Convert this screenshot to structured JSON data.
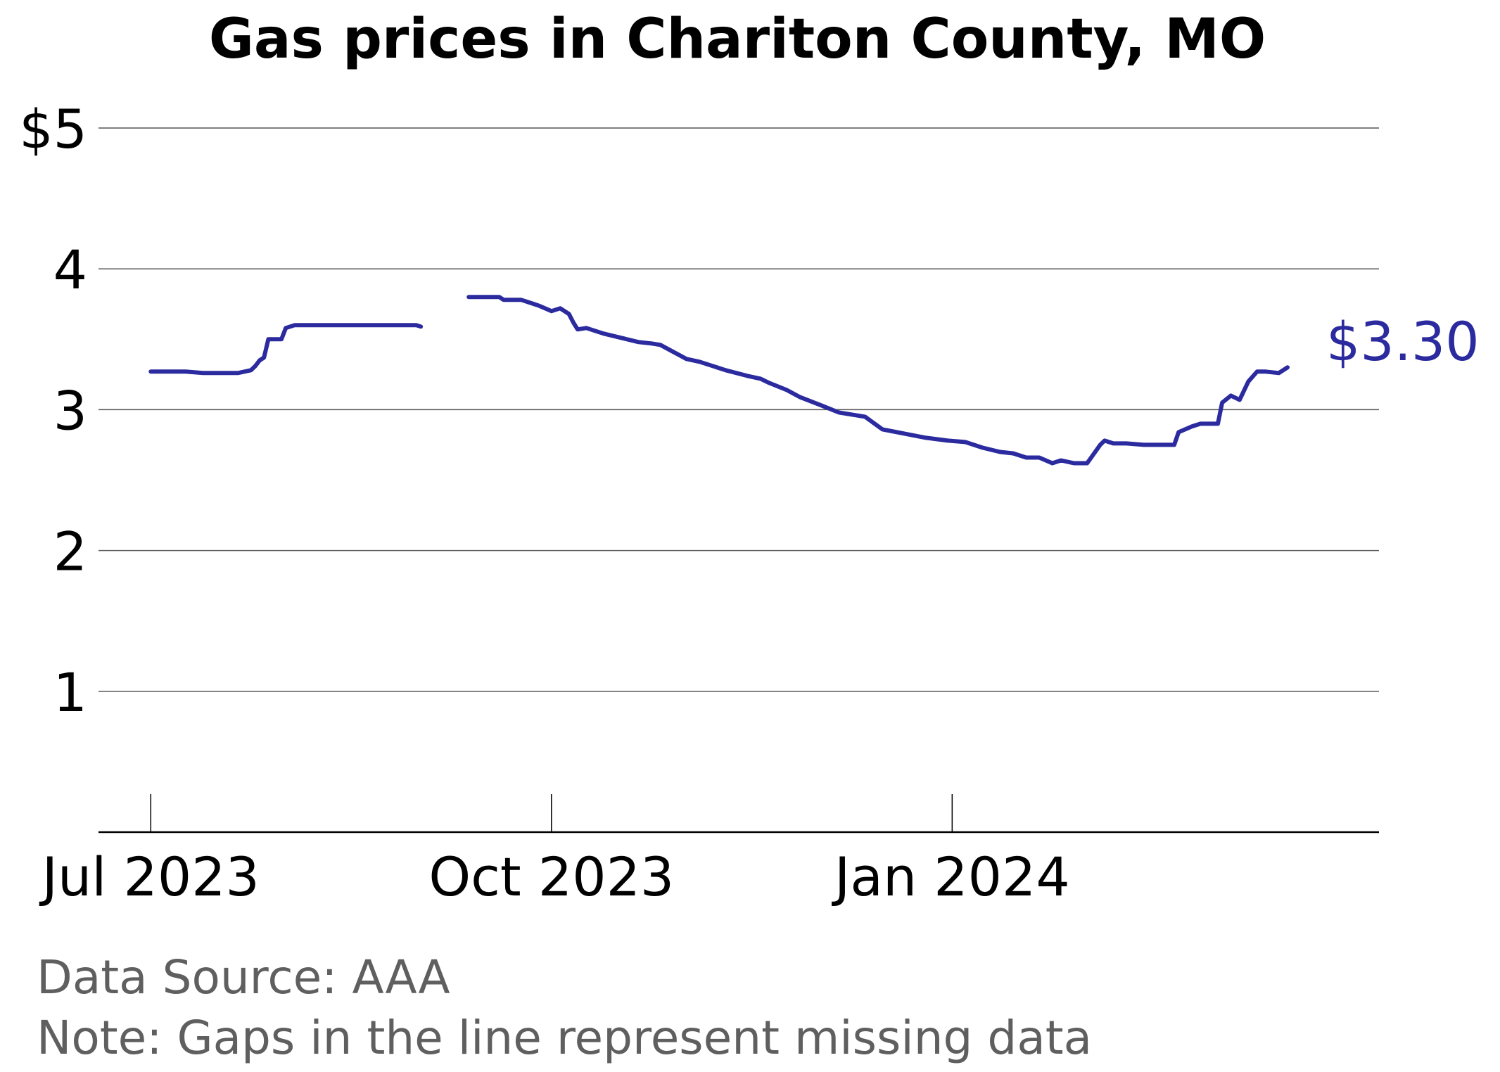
{
  "chart_data": {
    "type": "line",
    "title": "Gas prices in Chariton County, MO",
    "xlabel": "",
    "ylabel": "",
    "ylim": [
      0,
      5
    ],
    "xlim": [
      "2023-06-19",
      "2024-04-08"
    ],
    "grid": true,
    "y_ticks": [
      1,
      2,
      3,
      4,
      5
    ],
    "y_tick_labels": [
      "1",
      "2",
      "3",
      "4",
      "$5"
    ],
    "x_ticks": [
      "2023-07-01",
      "2023-10-01",
      "2024-01-01"
    ],
    "x_tick_labels": [
      "Jul 2023",
      "Oct 2023",
      "Jan 2024"
    ],
    "line_color": "#2b2b9f",
    "end_label": "$3.30",
    "series": [
      {
        "segments": [
          {
            "x": [
              "2023-07-01",
              "2023-07-05",
              "2023-07-09",
              "2023-07-13",
              "2023-07-17",
              "2023-07-21",
              "2023-07-24",
              "2023-07-25",
              "2023-07-26",
              "2023-07-27",
              "2023-07-28",
              "2023-07-31",
              "2023-08-01",
              "2023-08-03",
              "2023-08-10",
              "2023-08-20",
              "2023-08-31",
              "2023-09-01"
            ],
            "y": [
              3.27,
              3.27,
              3.27,
              3.26,
              3.26,
              3.26,
              3.28,
              3.31,
              3.35,
              3.37,
              3.5,
              3.5,
              3.58,
              3.6,
              3.6,
              3.6,
              3.6,
              3.59
            ]
          },
          {
            "x": [
              "2023-09-12",
              "2023-09-15",
              "2023-09-19",
              "2023-09-20",
              "2023-09-24",
              "2023-09-28",
              "2023-10-01",
              "2023-10-03",
              "2023-10-05",
              "2023-10-06",
              "2023-10-07",
              "2023-10-09",
              "2023-10-13",
              "2023-10-17",
              "2023-10-21",
              "2023-10-24",
              "2023-10-26",
              "2023-10-29",
              "2023-11-01",
              "2023-11-04",
              "2023-11-07",
              "2023-11-10",
              "2023-11-15",
              "2023-11-18",
              "2023-11-20",
              "2023-11-24",
              "2023-11-27",
              "2023-12-02",
              "2023-12-06",
              "2023-12-08",
              "2023-12-12",
              "2023-12-16",
              "2023-12-21",
              "2023-12-26",
              "2023-12-31",
              "2024-01-04",
              "2024-01-08",
              "2024-01-12",
              "2024-01-15",
              "2024-01-18",
              "2024-01-21",
              "2024-01-24",
              "2024-01-26",
              "2024-01-29",
              "2024-02-01",
              "2024-02-04",
              "2024-02-05",
              "2024-02-07",
              "2024-02-10",
              "2024-02-14",
              "2024-02-18",
              "2024-02-21",
              "2024-02-22",
              "2024-02-25",
              "2024-02-27",
              "2024-03-02",
              "2024-03-03",
              "2024-03-05",
              "2024-03-07",
              "2024-03-09",
              "2024-03-11",
              "2024-03-13",
              "2024-03-16",
              "2024-03-17",
              "2024-03-18"
            ],
            "y": [
              3.8,
              3.8,
              3.8,
              3.78,
              3.78,
              3.74,
              3.7,
              3.72,
              3.68,
              3.62,
              3.57,
              3.58,
              3.54,
              3.51,
              3.48,
              3.47,
              3.46,
              3.41,
              3.36,
              3.34,
              3.31,
              3.28,
              3.24,
              3.22,
              3.19,
              3.14,
              3.09,
              3.03,
              2.98,
              2.97,
              2.95,
              2.86,
              2.83,
              2.8,
              2.78,
              2.77,
              2.73,
              2.7,
              2.69,
              2.66,
              2.66,
              2.62,
              2.64,
              2.62,
              2.62,
              2.75,
              2.78,
              2.76,
              2.76,
              2.75,
              2.75,
              2.75,
              2.84,
              2.88,
              2.9,
              2.9,
              3.05,
              3.1,
              3.07,
              3.2,
              3.27,
              3.27,
              3.26,
              3.28,
              3.3
            ]
          }
        ]
      }
    ],
    "footer": {
      "source": "Data Source: AAA",
      "note": "Note: Gaps in the line represent missing data"
    }
  }
}
